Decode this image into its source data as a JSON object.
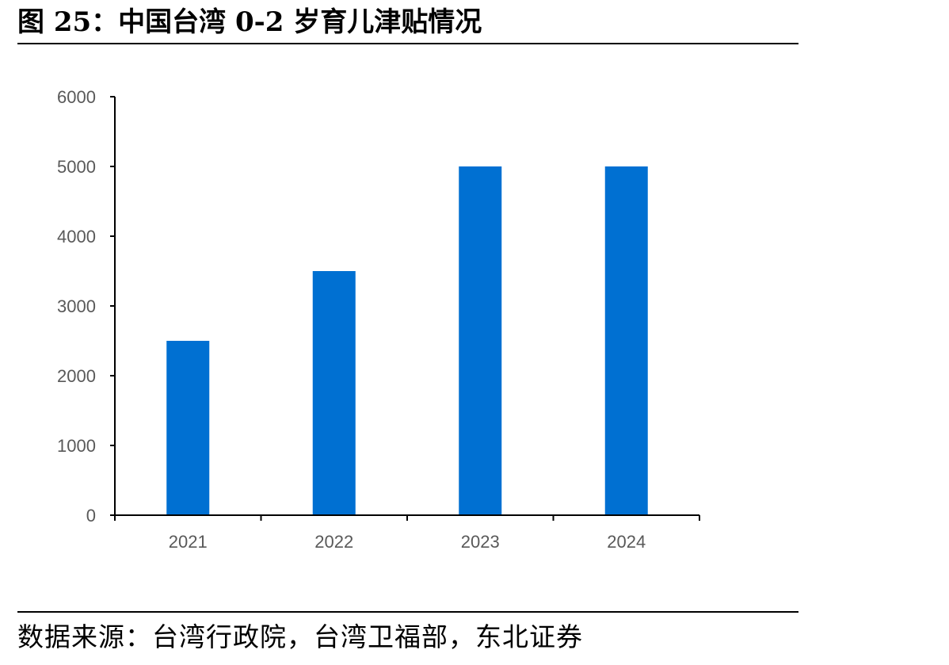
{
  "title": "图 25：中国台湾 0-2 岁育儿津贴情况",
  "source": "数据来源：台湾行政院，台湾卫福部，东北证券",
  "colors": {
    "bar": "#0070D2",
    "axis": "#000000",
    "tick_text": "#595959"
  },
  "chart_data": {
    "type": "bar",
    "categories": [
      "2021",
      "2022",
      "2023",
      "2024"
    ],
    "values": [
      2500,
      3500,
      5000,
      5000
    ],
    "title": "",
    "xlabel": "",
    "ylabel": "",
    "ylim": [
      0,
      6000
    ],
    "yticks": [
      "0",
      "1000",
      "2000",
      "3000",
      "4000",
      "5000",
      "6000"
    ],
    "grid": false,
    "legend": "none"
  }
}
